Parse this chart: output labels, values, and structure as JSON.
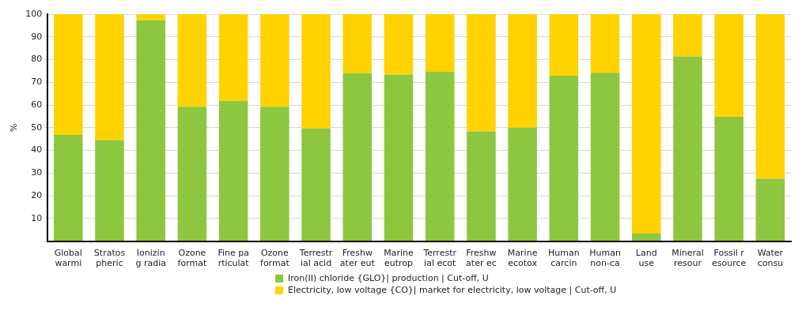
{
  "chart_data": {
    "type": "bar",
    "stacked": true,
    "ylabel": "%",
    "categories": [
      "Global\nwarmi",
      "Stratos\npheric",
      "Ionizin\ng radia",
      "Ozone\nformat",
      "Fine pa\nrticulat",
      "Ozone\nformat",
      "Terrestr\nial acid",
      "Freshw\nater eut",
      "Marine\neutrop",
      "Terrestr\nial ecot",
      "Freshw\nater ec",
      "Marine\necotox",
      "Human\ncarcin",
      "Human\nnon-ca",
      "Land\nuse",
      "Mineral\nresour",
      "Fossil r\nesource",
      "Water\nconsu"
    ],
    "series": [
      {
        "name": "Iron(II) chloride {GLO}| production | Cut-off, U",
        "color": "#8dc63f",
        "values": [
          46.8,
          44.5,
          97.3,
          59.2,
          61.8,
          59.2,
          49.7,
          74.0,
          73.4,
          74.6,
          48.4,
          50.0,
          72.9,
          74.2,
          3.3,
          81.4,
          54.8,
          27.5
        ]
      },
      {
        "name": "Electricity, low voltage {CO}| market for electricity, low voltage | Cut-off, U",
        "color": "#ffd200",
        "values": [
          53.2,
          55.5,
          2.7,
          40.8,
          38.2,
          40.8,
          50.3,
          26.0,
          26.6,
          25.4,
          51.6,
          50.0,
          27.1,
          25.8,
          96.7,
          18.6,
          45.2,
          72.5
        ]
      }
    ],
    "ylim": [
      0,
      100
    ],
    "yticks": [
      {
        "value": 0,
        "label": null
      },
      10,
      20,
      30,
      40,
      50,
      60,
      70,
      80,
      90,
      100
    ],
    "grid": "y",
    "legend": "bottom"
  }
}
